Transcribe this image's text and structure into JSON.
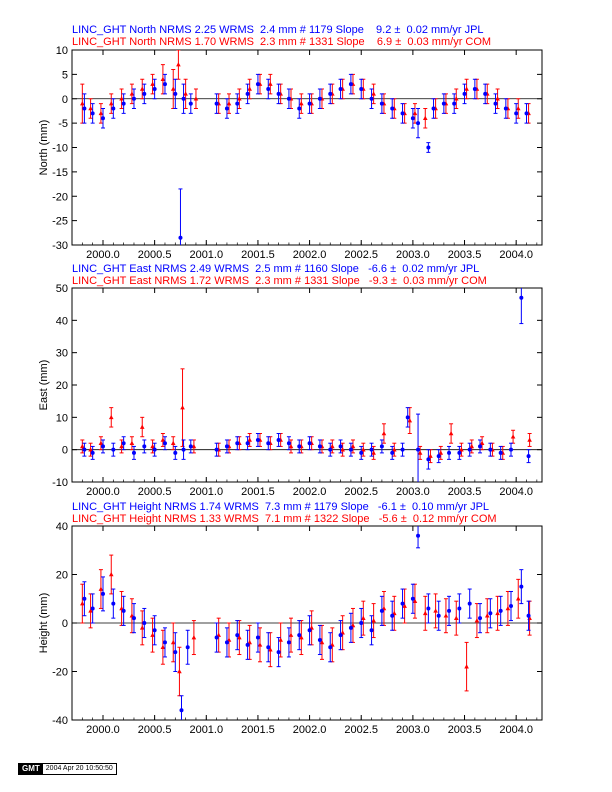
{
  "colors": {
    "jpl": "#0000ff",
    "com": "#ff0000",
    "axis": "#000000"
  },
  "footer": {
    "logo": "GMT",
    "timestamp": "2004 Apr 20 10:50:50"
  },
  "chart_data": [
    {
      "type": "scatter",
      "ylabel": "North (mm)",
      "xlim": [
        1999.7,
        2004.25
      ],
      "ylim": [
        -30,
        10
      ],
      "xticks": [
        "2000.0",
        "2000.5",
        "2001.0",
        "2001.5",
        "2002.0",
        "2002.5",
        "2003.0",
        "2003.5",
        "2004.0"
      ],
      "yticks": [
        "10",
        "5",
        "0",
        "-5",
        "-10",
        "-15",
        "-20",
        "-25",
        "-30"
      ],
      "series": [
        {
          "name": "JPL",
          "header": "LINC_GHT North NRMS 2.25 WRMS  2.4 mm # 1179 Slope    9.2 ±  0.02 mm/yr JPL",
          "nrms": 2.25,
          "wrms_mm": 2.4,
          "count": 1179,
          "slope_mm_per_yr": 9.2,
          "slope_err": 0.02,
          "x": [
            1999.82,
            1999.9,
            2000.0,
            2000.1,
            2000.2,
            2000.3,
            2000.4,
            2000.5,
            2000.6,
            2000.7,
            2000.75,
            2000.78,
            2000.85,
            2001.1,
            2001.2,
            2001.3,
            2001.4,
            2001.5,
            2001.6,
            2001.7,
            2001.8,
            2001.9,
            2002.0,
            2002.1,
            2002.2,
            2002.3,
            2002.4,
            2002.5,
            2002.6,
            2002.7,
            2002.8,
            2002.9,
            2003.0,
            2003.05,
            2003.15,
            2003.2,
            2003.3,
            2003.4,
            2003.5,
            2003.6,
            2003.7,
            2003.8,
            2003.9,
            2004.0,
            2004.1
          ],
          "y": [
            -2,
            -3,
            -4,
            -2,
            -1,
            0,
            1,
            2,
            3,
            1,
            -28.5,
            0,
            -1,
            -1,
            -2,
            -1,
            1,
            3,
            2,
            1,
            0,
            -2,
            -1,
            0,
            1,
            2,
            3,
            2,
            0,
            -1,
            -2,
            -3,
            -4,
            -5,
            -10,
            -2,
            -1,
            -1,
            1,
            2,
            1,
            -1,
            -2,
            -3,
            -3
          ],
          "err": [
            3,
            2,
            2,
            2,
            2,
            2,
            2,
            2,
            2,
            3,
            10,
            3,
            2,
            2,
            2,
            2,
            2,
            2,
            2,
            2,
            2,
            2,
            2,
            2,
            2,
            2,
            2,
            2,
            2,
            2,
            2,
            2,
            2,
            3,
            1,
            2,
            2,
            2,
            2,
            2,
            2,
            2,
            2,
            2,
            2
          ]
        },
        {
          "name": "COM",
          "header": "LINC_GHT North NRMS 1.70 WRMS  2.3 mm # 1331 Slope    6.9 ±  0.03 mm/yr COM",
          "nrms": 1.7,
          "wrms_mm": 2.3,
          "count": 1331,
          "slope_mm_per_yr": 6.9,
          "slope_err": 0.03,
          "x": [
            1999.8,
            1999.88,
            1999.98,
            2000.08,
            2000.18,
            2000.28,
            2000.38,
            2000.48,
            2000.58,
            2000.68,
            2000.73,
            2000.8,
            2000.9,
            2001.12,
            2001.22,
            2001.32,
            2001.42,
            2001.52,
            2001.62,
            2001.72,
            2001.82,
            2001.92,
            2002.02,
            2002.12,
            2002.22,
            2002.32,
            2002.42,
            2002.52,
            2002.62,
            2002.72,
            2002.82,
            2002.92,
            2003.02,
            2003.12,
            2003.22,
            2003.32,
            2003.42,
            2003.52,
            2003.62,
            2003.72,
            2003.82,
            2003.92,
            2004.02,
            2004.12
          ],
          "y": [
            -1,
            -2,
            -3,
            -1,
            0,
            1,
            2,
            3,
            4,
            2,
            7,
            1,
            0,
            -1,
            -1,
            0,
            2,
            3,
            3,
            1,
            0,
            -1,
            -1,
            0,
            1,
            2,
            3,
            2,
            1,
            -1,
            -2,
            -3,
            -3,
            -4,
            -2,
            -1,
            0,
            2,
            2,
            1,
            0,
            -2,
            -2,
            -3
          ],
          "err": [
            4,
            2,
            2,
            2,
            2,
            2,
            2,
            2,
            3,
            4,
            3,
            3,
            2,
            2,
            2,
            2,
            2,
            2,
            2,
            2,
            2,
            2,
            2,
            2,
            2,
            2,
            2,
            2,
            2,
            2,
            2,
            2,
            2,
            2,
            2,
            2,
            2,
            2,
            2,
            2,
            2,
            2,
            2,
            2
          ]
        }
      ]
    },
    {
      "type": "scatter",
      "ylabel": "East (mm)",
      "xlim": [
        1999.7,
        2004.25
      ],
      "ylim": [
        -10,
        50
      ],
      "xticks": [
        "2000.0",
        "2000.5",
        "2001.0",
        "2001.5",
        "2002.0",
        "2002.5",
        "2003.0",
        "2003.5",
        "2004.0"
      ],
      "yticks": [
        "50",
        "40",
        "30",
        "20",
        "10",
        "0",
        "-10"
      ],
      "series": [
        {
          "name": "JPL",
          "header": "LINC_GHT East NRMS 2.49 WRMS  2.5 mm # 1160 Slope   -6.6 ±  0.02 mm/yr JPL",
          "nrms": 2.49,
          "wrms_mm": 2.5,
          "count": 1160,
          "slope_mm_per_yr": -6.6,
          "slope_err": 0.02,
          "x": [
            1999.82,
            1999.9,
            2000.0,
            2000.1,
            2000.2,
            2000.3,
            2000.4,
            2000.5,
            2000.6,
            2000.7,
            2000.78,
            2000.85,
            2001.1,
            2001.2,
            2001.3,
            2001.4,
            2001.5,
            2001.6,
            2001.7,
            2001.8,
            2001.9,
            2002.0,
            2002.1,
            2002.2,
            2002.3,
            2002.4,
            2002.5,
            2002.6,
            2002.7,
            2002.8,
            2002.9,
            2002.95,
            2003.05,
            2003.15,
            2003.25,
            2003.35,
            2003.45,
            2003.55,
            2003.65,
            2003.75,
            2003.85,
            2003.95,
            2004.05,
            2004.12
          ],
          "y": [
            0,
            -1,
            1,
            0,
            2,
            -1,
            1,
            0,
            2,
            -1,
            0,
            1,
            0,
            1,
            2,
            2,
            3,
            2,
            3,
            2,
            1,
            2,
            1,
            0,
            1,
            0,
            -1,
            0,
            1,
            -1,
            0,
            10,
            0,
            -3,
            -2,
            -1,
            -1,
            0,
            1,
            0,
            -1,
            0,
            47,
            -2
          ],
          "err": [
            2,
            2,
            2,
            2,
            2,
            2,
            2,
            2,
            2,
            2,
            3,
            2,
            2,
            2,
            2,
            2,
            2,
            2,
            2,
            2,
            2,
            2,
            2,
            2,
            2,
            2,
            2,
            2,
            2,
            2,
            2,
            3,
            11,
            3,
            2,
            2,
            2,
            2,
            2,
            2,
            2,
            2,
            8,
            2
          ]
        },
        {
          "name": "COM",
          "header": "LINC_GHT East NRMS 1.72 WRMS  2.3 mm # 1331 Slope   -9.3 ±  0.03 mm/yr COM",
          "nrms": 1.72,
          "wrms_mm": 2.3,
          "count": 1331,
          "slope_mm_per_yr": -9.3,
          "slope_err": 0.03,
          "x": [
            1999.8,
            1999.88,
            1999.98,
            2000.08,
            2000.18,
            2000.28,
            2000.38,
            2000.48,
            2000.58,
            2000.68,
            2000.77,
            2000.88,
            2001.12,
            2001.22,
            2001.32,
            2001.42,
            2001.52,
            2001.62,
            2001.72,
            2001.82,
            2001.92,
            2002.02,
            2002.12,
            2002.22,
            2002.32,
            2002.42,
            2002.52,
            2002.62,
            2002.72,
            2002.82,
            2002.97,
            2003.07,
            2003.17,
            2003.27,
            2003.37,
            2003.47,
            2003.57,
            2003.67,
            2003.77,
            2003.87,
            2003.97,
            2004.13
          ],
          "y": [
            1,
            0,
            2,
            10,
            1,
            2,
            7,
            1,
            3,
            2,
            13,
            1,
            0,
            1,
            2,
            3,
            3,
            2,
            3,
            1,
            1,
            2,
            1,
            1,
            0,
            1,
            0,
            -1,
            5,
            0,
            9,
            -1,
            -2,
            -1,
            5,
            0,
            1,
            2,
            0,
            -1,
            4,
            3
          ],
          "err": [
            2,
            2,
            2,
            3,
            2,
            2,
            3,
            2,
            2,
            2,
            12,
            2,
            2,
            2,
            2,
            2,
            2,
            2,
            2,
            2,
            2,
            2,
            2,
            2,
            2,
            2,
            2,
            2,
            3,
            2,
            4,
            2,
            2,
            2,
            3,
            2,
            2,
            2,
            2,
            2,
            2,
            2
          ]
        }
      ]
    },
    {
      "type": "scatter",
      "ylabel": "Height (mm)",
      "xlim": [
        1999.7,
        2004.25
      ],
      "ylim": [
        -40,
        40
      ],
      "xticks": [
        "2000.0",
        "2000.5",
        "2001.0",
        "2001.5",
        "2002.0",
        "2002.5",
        "2003.0",
        "2003.5",
        "2004.0"
      ],
      "yticks": [
        "40",
        "20",
        "0",
        "-20",
        "-40"
      ],
      "series": [
        {
          "name": "JPL",
          "header": "LINC_GHT Height NRMS 1.74 WRMS  7.3 mm # 1179 Slope   -6.1 ±  0.10 mm/yr JPL",
          "nrms": 1.74,
          "wrms_mm": 7.3,
          "count": 1179,
          "slope_mm_per_yr": -6.1,
          "slope_err": 0.1,
          "x": [
            1999.82,
            1999.9,
            2000.0,
            2000.1,
            2000.2,
            2000.3,
            2000.4,
            2000.5,
            2000.6,
            2000.7,
            2000.76,
            2000.82,
            2001.1,
            2001.2,
            2001.3,
            2001.4,
            2001.5,
            2001.6,
            2001.7,
            2001.8,
            2001.9,
            2002.0,
            2002.1,
            2002.2,
            2002.3,
            2002.4,
            2002.5,
            2002.6,
            2002.7,
            2002.8,
            2002.9,
            2003.0,
            2003.05,
            2003.15,
            2003.25,
            2003.35,
            2003.45,
            2003.55,
            2003.65,
            2003.75,
            2003.85,
            2003.95,
            2004.05,
            2004.12
          ],
          "y": [
            10,
            6,
            12,
            8,
            5,
            2,
            0,
            -3,
            -8,
            -12,
            -36,
            -10,
            -6,
            -8,
            -5,
            -9,
            -6,
            -10,
            -12,
            -8,
            -5,
            -3,
            -7,
            -10,
            -5,
            -2,
            0,
            -3,
            5,
            3,
            8,
            10,
            36,
            6,
            3,
            5,
            6,
            8,
            2,
            4,
            5,
            7,
            15,
            3
          ],
          "err": [
            7,
            6,
            7,
            6,
            6,
            6,
            6,
            6,
            6,
            8,
            6,
            7,
            6,
            6,
            6,
            6,
            6,
            6,
            6,
            6,
            6,
            6,
            6,
            6,
            6,
            6,
            6,
            6,
            6,
            6,
            6,
            6,
            5,
            6,
            6,
            6,
            6,
            6,
            6,
            6,
            6,
            6,
            7,
            6
          ]
        },
        {
          "name": "COM",
          "header": "LINC_GHT Height NRMS 1.33 WRMS  7.1 mm # 1322 Slope   -5.6 ±  0.12 mm/yr COM",
          "nrms": 1.33,
          "wrms_mm": 7.1,
          "count": 1322,
          "slope_mm_per_yr": -5.6,
          "slope_err": 0.12,
          "x": [
            1999.8,
            1999.88,
            1999.98,
            2000.08,
            2000.18,
            2000.28,
            2000.38,
            2000.48,
            2000.58,
            2000.68,
            2000.74,
            2000.88,
            2001.12,
            2001.22,
            2001.32,
            2001.42,
            2001.52,
            2001.62,
            2001.72,
            2001.82,
            2001.92,
            2002.02,
            2002.12,
            2002.22,
            2002.32,
            2002.42,
            2002.52,
            2002.62,
            2002.72,
            2002.82,
            2002.92,
            2003.02,
            2003.12,
            2003.22,
            2003.32,
            2003.42,
            2003.52,
            2003.62,
            2003.72,
            2003.82,
            2003.92,
            2004.02,
            2004.13
          ],
          "y": [
            8,
            5,
            14,
            20,
            6,
            3,
            -2,
            -5,
            -10,
            -8,
            -20,
            -6,
            -5,
            -7,
            -6,
            -8,
            -9,
            -11,
            -7,
            -5,
            -6,
            -2,
            -8,
            -9,
            -4,
            -1,
            2,
            1,
            6,
            4,
            7,
            9,
            4,
            5,
            3,
            2,
            -18,
            1,
            3,
            4,
            6,
            10,
            2
          ],
          "err": [
            8,
            7,
            8,
            8,
            7,
            7,
            7,
            7,
            7,
            8,
            10,
            7,
            7,
            7,
            7,
            7,
            7,
            7,
            7,
            7,
            7,
            7,
            7,
            7,
            7,
            7,
            7,
            7,
            7,
            7,
            7,
            7,
            7,
            7,
            7,
            7,
            10,
            7,
            7,
            7,
            7,
            8,
            7
          ]
        }
      ]
    }
  ]
}
